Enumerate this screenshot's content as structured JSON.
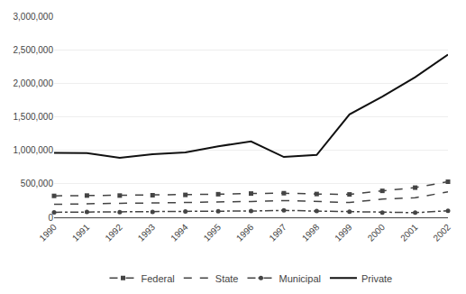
{
  "chart_data": {
    "type": "line",
    "x": [
      1990,
      1991,
      1992,
      1993,
      1994,
      1995,
      1996,
      1997,
      1998,
      1999,
      2000,
      2001,
      2002
    ],
    "series": [
      {
        "name": "Federal",
        "color": "#444444",
        "line_style": "dash",
        "marker": "square",
        "values": [
          320000,
          325000,
          325000,
          330000,
          335000,
          345000,
          355000,
          360000,
          348000,
          342000,
          395000,
          443000,
          531000
        ]
      },
      {
        "name": "State",
        "color": "#444444",
        "line_style": "dash",
        "values": [
          194000,
          205000,
          210000,
          214000,
          220000,
          225000,
          237000,
          250000,
          232000,
          222000,
          272000,
          292000,
          380000
        ]
      },
      {
        "name": "Municipal",
        "color": "#444444",
        "line_style": "dashdot",
        "marker": "circle",
        "values": [
          75000,
          80000,
          78000,
          82000,
          87000,
          92000,
          94000,
          104000,
          93000,
          85000,
          72000,
          70000,
          98000
        ]
      },
      {
        "name": "Private",
        "color": "#111111",
        "line_style": "solid",
        "values": [
          961000,
          959000,
          888000,
          941000,
          970000,
          1060000,
          1133000,
          900000,
          930000,
          1537000,
          1800000,
          2091000,
          2428000
        ]
      }
    ],
    "xlim": [
      1990,
      2002
    ],
    "xticks": [
      1990,
      1991,
      1992,
      1993,
      1994,
      1995,
      1996,
      1997,
      1998,
      1999,
      2000,
      2001,
      2002
    ],
    "ylim": [
      0,
      3000000
    ],
    "yticks": [
      0,
      {
        "value": 500000,
        "label": "500,000"
      },
      {
        "value": 1000000,
        "label": "1,000,000"
      },
      {
        "value": 1500000,
        "label": "1,500,000"
      },
      {
        "value": 2000000,
        "label": "2,000,000"
      },
      {
        "value": 2500000,
        "label": "2,500,000"
      },
      {
        "value": 3000000,
        "label": "3,000,000"
      }
    ],
    "grid": "y",
    "legend": "bottom"
  }
}
